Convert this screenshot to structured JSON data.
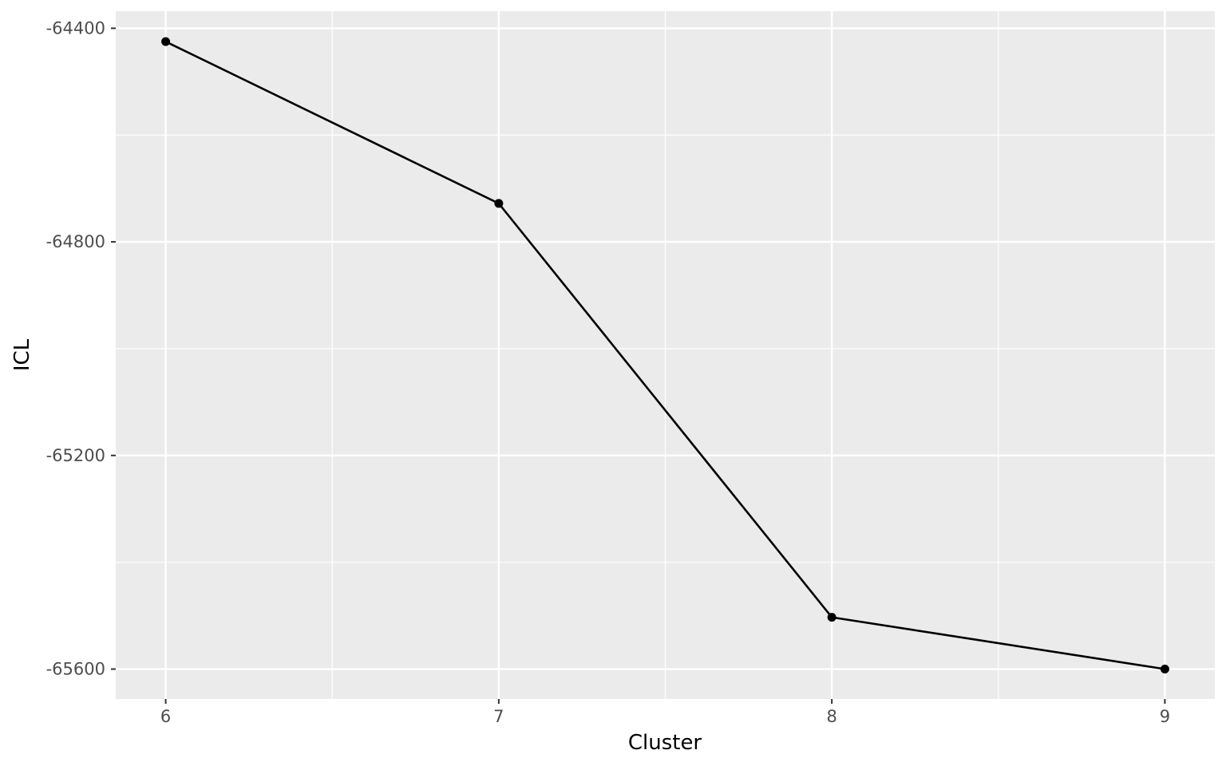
{
  "chart_data": {
    "type": "line",
    "xlabel": "Cluster",
    "ylabel": "ICL",
    "x": [
      6,
      7,
      8,
      9
    ],
    "series": [
      {
        "values": [
          -64425,
          -64728,
          -65503,
          -65600
        ]
      }
    ],
    "xlim": [
      5.85,
      9.15
    ],
    "ylim": [
      -65656,
      -64368
    ],
    "x_ticks": [
      6,
      7,
      8,
      9
    ],
    "x_tick_labels": [
      "6",
      "7",
      "8",
      "9"
    ],
    "y_ticks": [
      -64400,
      -64800,
      -65200,
      -65600
    ],
    "y_tick_labels": [
      "-64400",
      "-64800",
      "-65200",
      "-65600"
    ],
    "x_minor_ticks": [
      6.5,
      7.5,
      8.5
    ],
    "y_minor_ticks": [
      -64600,
      -65000,
      -65400
    ],
    "grid": true,
    "legend": "none",
    "colors": {
      "panel_background": "#ebebeb",
      "grid_line": "#ffffff",
      "series_line": "#000000",
      "tick_label": "#4d4d4d",
      "axis_title": "#000000",
      "tick_mark": "#333333"
    }
  }
}
